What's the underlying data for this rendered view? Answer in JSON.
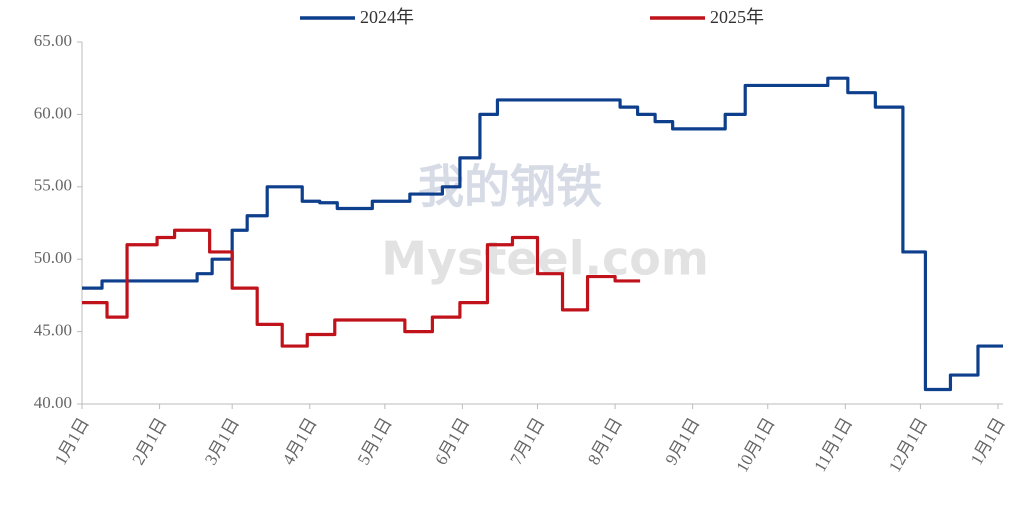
{
  "chart_data": {
    "type": "line",
    "step": true,
    "watermark": [
      "我的钢铁",
      "Mysteel.com"
    ],
    "xlim": [
      0,
      368
    ],
    "xticks": [
      {
        "value": 0,
        "label": "1月1日"
      },
      {
        "value": 31,
        "label": "2月1日"
      },
      {
        "value": 60,
        "label": "3月1日"
      },
      {
        "value": 91,
        "label": "4月1日"
      },
      {
        "value": 121,
        "label": "5月1日"
      },
      {
        "value": 152,
        "label": "6月1日"
      },
      {
        "value": 182,
        "label": "7月1日"
      },
      {
        "value": 213,
        "label": "8月1日"
      },
      {
        "value": 244,
        "label": "9月1日"
      },
      {
        "value": 274,
        "label": "10月1日"
      },
      {
        "value": 305,
        "label": "11月1日"
      },
      {
        "value": 335,
        "label": "12月1日"
      },
      {
        "value": 366,
        "label": "1月1日"
      }
    ],
    "ylim": [
      40,
      65
    ],
    "yticks": [
      {
        "value": 40,
        "label": "40.00"
      },
      {
        "value": 45,
        "label": "45.00"
      },
      {
        "value": 50,
        "label": "50.00"
      },
      {
        "value": 55,
        "label": "55.00"
      },
      {
        "value": 60,
        "label": "60.00"
      },
      {
        "value": 65,
        "label": "65.00"
      }
    ],
    "series": [
      {
        "name": "2024年",
        "color": "#0e3f8c",
        "x": [
          0,
          8,
          46,
          52,
          60,
          66,
          74,
          88,
          95,
          102,
          116,
          131,
          144,
          151,
          159,
          166,
          215,
          222,
          229,
          236,
          257,
          265,
          298,
          306,
          317,
          328,
          337,
          347,
          358,
          368
        ],
        "values": [
          48,
          48.5,
          49,
          50,
          52,
          53,
          55,
          54,
          53.9,
          53.5,
          54,
          54.5,
          55,
          57,
          60,
          61,
          60.5,
          60,
          59.5,
          59,
          60,
          62,
          62.5,
          61.5,
          60.5,
          50.5,
          41,
          42,
          44,
          44
        ]
      },
      {
        "name": "2025年",
        "color": "#c0121b",
        "x": [
          0,
          10,
          18,
          30,
          37,
          51,
          60,
          70,
          80,
          90,
          101,
          129,
          140,
          151,
          162,
          172,
          182,
          192,
          202,
          213,
          223
        ],
        "values": [
          47,
          46,
          51,
          51.5,
          52,
          50.5,
          48,
          45.5,
          44,
          44.8,
          45.8,
          45,
          46,
          47,
          51,
          51.5,
          49,
          46.5,
          48.8,
          48.5,
          48.5
        ]
      }
    ]
  }
}
